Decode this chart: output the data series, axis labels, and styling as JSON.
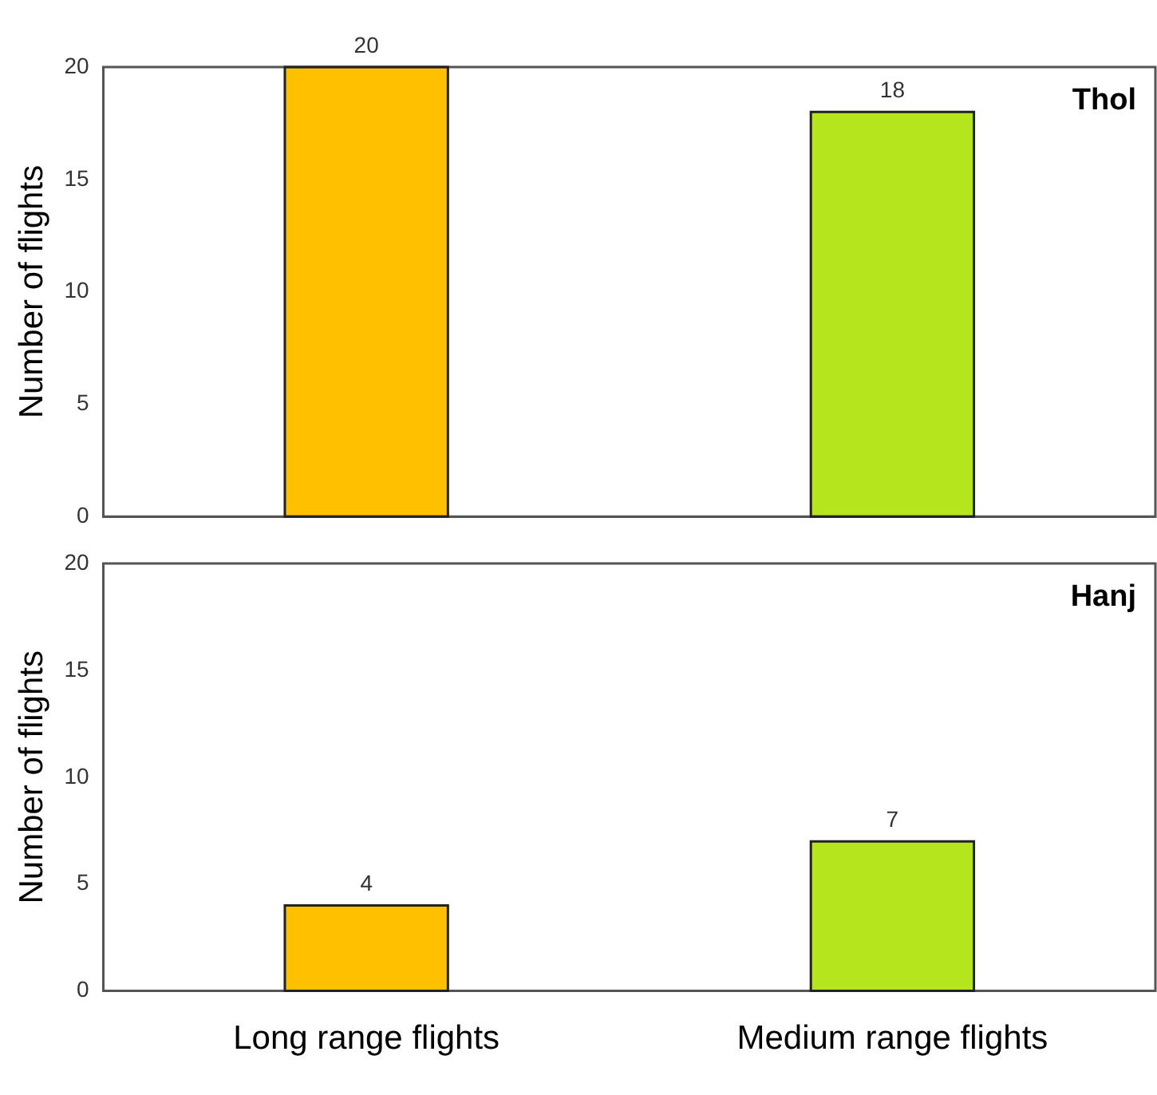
{
  "chart_data": [
    {
      "type": "bar",
      "ylabel": "Number of flights",
      "categories": [
        null,
        null
      ],
      "values": [
        20,
        18
      ],
      "colors": [
        "#ffc000",
        "#b5e61d"
      ],
      "ylim": [
        0,
        20
      ],
      "yticks": [
        0,
        5,
        10,
        15,
        20
      ],
      "grid": false,
      "data_labels": true,
      "tick_labels": "y",
      "annotations": [
        "Thol"
      ]
    },
    {
      "type": "bar",
      "ylabel": "Number of flights",
      "categories": [
        "Long range flights",
        "Medium range flights"
      ],
      "values": [
        4,
        7
      ],
      "colors": [
        "#ffc000",
        "#b5e61d"
      ],
      "ylim": [
        0,
        20
      ],
      "yticks": [
        0,
        5,
        10,
        15,
        20
      ],
      "grid": false,
      "data_labels": true,
      "annotations": [
        "Hanj"
      ]
    }
  ]
}
